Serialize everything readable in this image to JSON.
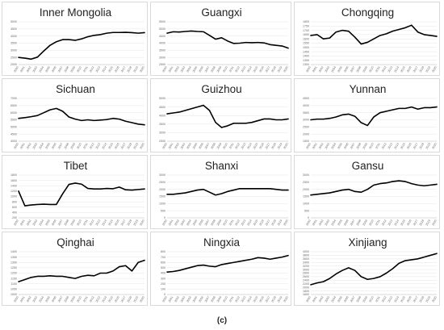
{
  "caption": "(c)",
  "chart_data": [
    {
      "type": "line",
      "title": "Inner Mongolia",
      "x": [
        2000,
        2001,
        2002,
        2003,
        2004,
        2005,
        2006,
        2007,
        2008,
        2009,
        2010,
        2011,
        2012,
        2013,
        2014,
        2015,
        2016,
        2017,
        2018,
        2019,
        2020
      ],
      "y_ticks": [
        2000,
        2500,
        3000,
        3500,
        4000,
        4500,
        5000
      ],
      "ylim": [
        2000,
        5000
      ],
      "series": [
        {
          "values": [
            2500,
            2450,
            2380,
            2520,
            2950,
            3350,
            3600,
            3750,
            3750,
            3700,
            3800,
            3950,
            4050,
            4100,
            4200,
            4250,
            4250,
            4260,
            4240,
            4200,
            4240
          ]
        }
      ]
    },
    {
      "type": "line",
      "title": "Guangxi",
      "x": [
        2000,
        2001,
        2002,
        2003,
        2004,
        2005,
        2006,
        2007,
        2008,
        2009,
        2010,
        2011,
        2012,
        2013,
        2014,
        2015,
        2016,
        2017,
        2018,
        2019,
        2020
      ],
      "y_ticks": [
        2500,
        3000,
        3500,
        4000,
        4500,
        5000,
        5500
      ],
      "ylim": [
        2500,
        5500
      ],
      "series": [
        {
          "values": [
            4700,
            4800,
            4780,
            4820,
            4850,
            4820,
            4800,
            4550,
            4280,
            4380,
            4150,
            3980,
            4000,
            4050,
            4030,
            4050,
            4020,
            3900,
            3850,
            3800,
            3650
          ]
        }
      ]
    },
    {
      "type": "line",
      "title": "Chongqing",
      "x": [
        2000,
        2001,
        2002,
        2003,
        2004,
        2005,
        2006,
        2007,
        2008,
        2009,
        2010,
        2011,
        2012,
        2013,
        2014,
        2015,
        2016,
        2017,
        2018,
        2019,
        2020
      ],
      "y_ticks": [
        1300,
        1350,
        1400,
        1450,
        1500,
        1550,
        1600,
        1650,
        1700,
        1750,
        1800
      ],
      "ylim": [
        1300,
        1800
      ],
      "series": [
        {
          "values": [
            1640,
            1650,
            1600,
            1610,
            1680,
            1700,
            1690,
            1620,
            1540,
            1560,
            1600,
            1640,
            1660,
            1690,
            1710,
            1730,
            1760,
            1680,
            1650,
            1640,
            1630
          ]
        }
      ]
    },
    {
      "type": "line",
      "title": "Sichuan",
      "x": [
        2000,
        2001,
        2002,
        2003,
        2004,
        2005,
        2006,
        2007,
        2008,
        2009,
        2010,
        2011,
        2012,
        2013,
        2014,
        2015,
        2016,
        2017,
        2018,
        2019,
        2020
      ],
      "y_ticks": [
        4000,
        4500,
        5000,
        5500,
        6000,
        6500,
        7000
      ],
      "ylim": [
        4000,
        7000
      ],
      "series": [
        {
          "values": [
            5600,
            5650,
            5720,
            5800,
            6000,
            6200,
            6300,
            6100,
            5700,
            5550,
            5450,
            5500,
            5450,
            5480,
            5520,
            5600,
            5550,
            5400,
            5300,
            5200,
            5150
          ]
        }
      ]
    },
    {
      "type": "line",
      "title": "Guizhou",
      "x": [
        2000,
        2001,
        2002,
        2003,
        2004,
        2005,
        2006,
        2007,
        2008,
        2009,
        2010,
        2011,
        2012,
        2013,
        2014,
        2015,
        2016,
        2017,
        2018,
        2019,
        2020
      ],
      "y_ticks": [
        2500,
        3000,
        3500,
        4000,
        4500,
        5000
      ],
      "ylim": [
        2500,
        5000
      ],
      "series": [
        {
          "values": [
            4100,
            4150,
            4200,
            4300,
            4400,
            4500,
            4600,
            4300,
            3600,
            3300,
            3400,
            3550,
            3550,
            3550,
            3600,
            3700,
            3800,
            3800,
            3750,
            3750,
            3800
          ]
        }
      ]
    },
    {
      "type": "line",
      "title": "Yunnan",
      "x": [
        2000,
        2001,
        2002,
        2003,
        2004,
        2005,
        2006,
        2007,
        2008,
        2009,
        2010,
        2011,
        2012,
        2013,
        2014,
        2015,
        2016,
        2017,
        2018,
        2019,
        2020
      ],
      "y_ticks": [
        1500,
        2000,
        2500,
        3000,
        3500,
        4000,
        4500
      ],
      "ylim": [
        1500,
        4500
      ],
      "series": [
        {
          "values": [
            3000,
            3050,
            3050,
            3100,
            3200,
            3350,
            3400,
            3250,
            2800,
            2600,
            3200,
            3500,
            3600,
            3700,
            3800,
            3800,
            3900,
            3750,
            3850,
            3850,
            3900
          ]
        }
      ]
    },
    {
      "type": "line",
      "title": "Tibet",
      "x": [
        2000,
        2001,
        2002,
        2003,
        2004,
        2005,
        2006,
        2007,
        2008,
        2009,
        2010,
        2011,
        2012,
        2013,
        2014,
        2015,
        2016,
        2017,
        2018,
        2019,
        2020
      ],
      "y_ticks": [
        200,
        400,
        600,
        800,
        1000,
        1200,
        1400,
        1600,
        1800
      ],
      "ylim": [
        200,
        1800
      ],
      "series": [
        {
          "values": [
            1200,
            650,
            680,
            700,
            710,
            700,
            700,
            1100,
            1450,
            1500,
            1460,
            1300,
            1280,
            1280,
            1300,
            1290,
            1350,
            1250,
            1240,
            1260,
            1280
          ]
        }
      ]
    },
    {
      "type": "line",
      "title": "Shanxi",
      "x": [
        2000,
        2001,
        2002,
        2003,
        2004,
        2005,
        2006,
        2007,
        2008,
        2009,
        2010,
        2011,
        2012,
        2013,
        2014,
        2015,
        2016,
        2017,
        2018,
        2019,
        2020
      ],
      "y_ticks": [
        0,
        500,
        1000,
        1500,
        2000,
        2500,
        3000
      ],
      "ylim": [
        0,
        3000
      ],
      "series": [
        {
          "values": [
            1650,
            1650,
            1700,
            1750,
            1850,
            1950,
            2000,
            1800,
            1600,
            1700,
            1850,
            1950,
            2050,
            2050,
            2050,
            2050,
            2050,
            2050,
            2000,
            1950,
            1950
          ]
        }
      ]
    },
    {
      "type": "line",
      "title": "Gansu",
      "x": [
        2000,
        2001,
        2002,
        2003,
        2004,
        2005,
        2006,
        2007,
        2008,
        2009,
        2010,
        2011,
        2012,
        2013,
        2014,
        2015,
        2016,
        2017,
        2018,
        2019,
        2020
      ],
      "y_ticks": [
        0,
        500,
        1000,
        1500,
        2000,
        2500,
        3000
      ],
      "ylim": [
        0,
        3000
      ],
      "series": [
        {
          "values": [
            1600,
            1650,
            1700,
            1750,
            1850,
            1950,
            2000,
            1850,
            1800,
            2000,
            2300,
            2400,
            2450,
            2550,
            2600,
            2550,
            2400,
            2300,
            2250,
            2300,
            2350
          ]
        }
      ]
    },
    {
      "type": "line",
      "title": "Qinghai",
      "x": [
        2000,
        2001,
        2002,
        2003,
        2004,
        2005,
        2006,
        2007,
        2008,
        2009,
        2010,
        2011,
        2012,
        2013,
        2014,
        2015,
        2016,
        2017,
        2018,
        2019,
        2020
      ],
      "y_ticks": [
        1000,
        1050,
        1100,
        1150,
        1200,
        1250,
        1300,
        1350,
        1400
      ],
      "ylim": [
        1000,
        1400
      ],
      "series": [
        {
          "values": [
            1120,
            1140,
            1160,
            1170,
            1170,
            1175,
            1170,
            1170,
            1160,
            1150,
            1170,
            1180,
            1175,
            1200,
            1200,
            1220,
            1260,
            1270,
            1220,
            1300,
            1320
          ]
        }
      ]
    },
    {
      "type": "line",
      "title": "Ningxia",
      "x": [
        2000,
        2001,
        2002,
        2003,
        2004,
        2005,
        2006,
        2007,
        2008,
        2009,
        2010,
        2011,
        2012,
        2013,
        2014,
        2015,
        2016,
        2017,
        2018,
        2019,
        2020
      ],
      "y_ticks": [
        0,
        100,
        200,
        300,
        400,
        500,
        600,
        700,
        800
      ],
      "ylim": [
        0,
        800
      ],
      "series": [
        {
          "values": [
            420,
            430,
            450,
            480,
            510,
            540,
            550,
            530,
            520,
            560,
            580,
            600,
            620,
            640,
            660,
            690,
            680,
            660,
            680,
            700,
            730
          ]
        }
      ]
    },
    {
      "type": "line",
      "title": "Xinjiang",
      "x": [
        2000,
        2001,
        2002,
        2003,
        2004,
        2005,
        2006,
        2007,
        2008,
        2009,
        2010,
        2011,
        2012,
        2013,
        2014,
        2015,
        2016,
        2017,
        2018,
        2019,
        2020
      ],
      "y_ticks": [
        1600,
        1800,
        2000,
        2200,
        2400,
        2600,
        2800,
        3000,
        3200,
        3400,
        3600,
        3800,
        4000
      ],
      "ylim": [
        1600,
        4000
      ],
      "series": [
        {
          "values": [
            2150,
            2250,
            2320,
            2500,
            2750,
            2950,
            3100,
            2950,
            2600,
            2450,
            2500,
            2600,
            2800,
            3050,
            3350,
            3500,
            3550,
            3600,
            3700,
            3800,
            3900
          ]
        }
      ]
    }
  ]
}
